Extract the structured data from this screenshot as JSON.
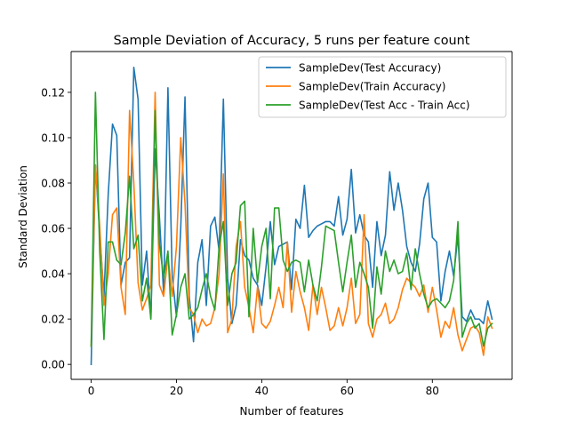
{
  "chart_data": {
    "type": "line",
    "title": "Sample Deviation of Accuracy, 5 runs per feature count",
    "xlabel": "Number of features",
    "ylabel": "Standard Deviation",
    "xlim": [
      -4.7,
      98.7
    ],
    "ylim": [
      -0.0066,
      0.138
    ],
    "xticks": [
      0,
      20,
      40,
      60,
      80
    ],
    "yticks": [
      0.0,
      0.02,
      0.04,
      0.06,
      0.08,
      0.1,
      0.12
    ],
    "ytick_labels": [
      "0.00",
      "0.02",
      "0.04",
      "0.06",
      "0.08",
      "0.10",
      "0.12"
    ],
    "grid": false,
    "legend_position": "top-right",
    "x": [
      0,
      1,
      2,
      3,
      4,
      5,
      6,
      7,
      8,
      9,
      10,
      11,
      12,
      13,
      14,
      15,
      16,
      17,
      18,
      19,
      20,
      21,
      22,
      23,
      24,
      25,
      26,
      27,
      28,
      29,
      30,
      31,
      32,
      33,
      34,
      35,
      36,
      37,
      38,
      39,
      40,
      41,
      42,
      43,
      44,
      45,
      46,
      47,
      48,
      49,
      50,
      51,
      52,
      53,
      54,
      55,
      56,
      57,
      58,
      59,
      60,
      61,
      62,
      63,
      64,
      65,
      66,
      67,
      68,
      69,
      70,
      71,
      72,
      73,
      74,
      75,
      76,
      77,
      78,
      79,
      80,
      81,
      82,
      83,
      84,
      85,
      86,
      87,
      88,
      89,
      90,
      91,
      92,
      93,
      94
    ],
    "series": [
      {
        "name": "SampleDev(Test Accuracy)",
        "color": "#1f77b4",
        "values": [
          0.0,
          0.088,
          0.058,
          0.03,
          0.075,
          0.106,
          0.101,
          0.035,
          0.045,
          0.047,
          0.131,
          0.117,
          0.035,
          0.05,
          0.02,
          0.095,
          0.065,
          0.031,
          0.122,
          0.039,
          0.021,
          0.06,
          0.118,
          0.03,
          0.01,
          0.045,
          0.055,
          0.026,
          0.061,
          0.065,
          0.05,
          0.117,
          0.038,
          0.018,
          0.026,
          0.055,
          0.048,
          0.046,
          0.038,
          0.035,
          0.026,
          0.043,
          0.063,
          0.044,
          0.052,
          0.053,
          0.054,
          0.033,
          0.064,
          0.06,
          0.079,
          0.056,
          0.059,
          0.061,
          0.062,
          0.063,
          0.063,
          0.061,
          0.074,
          0.057,
          0.064,
          0.086,
          0.058,
          0.066,
          0.057,
          0.054,
          0.034,
          0.063,
          0.048,
          0.057,
          0.085,
          0.068,
          0.08,
          0.068,
          0.052,
          0.045,
          0.041,
          0.053,
          0.073,
          0.08,
          0.056,
          0.054,
          0.028,
          0.041,
          0.05,
          0.039,
          0.057,
          0.021,
          0.019,
          0.024,
          0.02,
          0.02,
          0.018,
          0.028,
          0.02
        ]
      },
      {
        "name": "SampleDev(Train Accuracy)",
        "color": "#ff7f0e",
        "values": [
          0.008,
          0.088,
          0.061,
          0.026,
          0.04,
          0.066,
          0.069,
          0.034,
          0.022,
          0.112,
          0.08,
          0.036,
          0.024,
          0.029,
          0.035,
          0.12,
          0.035,
          0.03,
          0.048,
          0.03,
          0.052,
          0.1,
          0.071,
          0.025,
          0.022,
          0.014,
          0.02,
          0.017,
          0.018,
          0.025,
          0.04,
          0.084,
          0.014,
          0.02,
          0.052,
          0.063,
          0.034,
          0.025,
          0.014,
          0.034,
          0.018,
          0.016,
          0.019,
          0.026,
          0.034,
          0.025,
          0.054,
          0.023,
          0.041,
          0.032,
          0.025,
          0.015,
          0.035,
          0.022,
          0.034,
          0.025,
          0.015,
          0.017,
          0.025,
          0.017,
          0.025,
          0.038,
          0.018,
          0.022,
          0.066,
          0.018,
          0.012,
          0.02,
          0.022,
          0.027,
          0.018,
          0.02,
          0.025,
          0.033,
          0.038,
          0.036,
          0.034,
          0.03,
          0.035,
          0.023,
          0.034,
          0.024,
          0.012,
          0.019,
          0.016,
          0.025,
          0.013,
          0.006,
          0.011,
          0.016,
          0.017,
          0.014,
          0.004,
          0.021,
          0.016
        ]
      },
      {
        "name": "SampleDev(Test Acc - Train Acc)",
        "color": "#2ca02c",
        "values": [
          0.008,
          0.12,
          0.05,
          0.011,
          0.054,
          0.054,
          0.046,
          0.044,
          0.058,
          0.083,
          0.051,
          0.057,
          0.028,
          0.038,
          0.02,
          0.112,
          0.053,
          0.038,
          0.05,
          0.013,
          0.022,
          0.034,
          0.04,
          0.02,
          0.022,
          0.025,
          0.033,
          0.04,
          0.03,
          0.024,
          0.052,
          0.063,
          0.026,
          0.04,
          0.045,
          0.07,
          0.072,
          0.021,
          0.06,
          0.036,
          0.052,
          0.06,
          0.029,
          0.069,
          0.069,
          0.046,
          0.041,
          0.045,
          0.046,
          0.045,
          0.032,
          0.046,
          0.035,
          0.028,
          0.043,
          0.061,
          0.06,
          0.059,
          0.045,
          0.032,
          0.045,
          0.057,
          0.034,
          0.045,
          0.04,
          0.034,
          0.016,
          0.043,
          0.031,
          0.05,
          0.041,
          0.046,
          0.04,
          0.041,
          0.049,
          0.033,
          0.051,
          0.04,
          0.031,
          0.025,
          0.028,
          0.029,
          0.027,
          0.025,
          0.028,
          0.037,
          0.063,
          0.012,
          0.018,
          0.021,
          0.016,
          0.018,
          0.008,
          0.016,
          0.018
        ]
      }
    ]
  }
}
